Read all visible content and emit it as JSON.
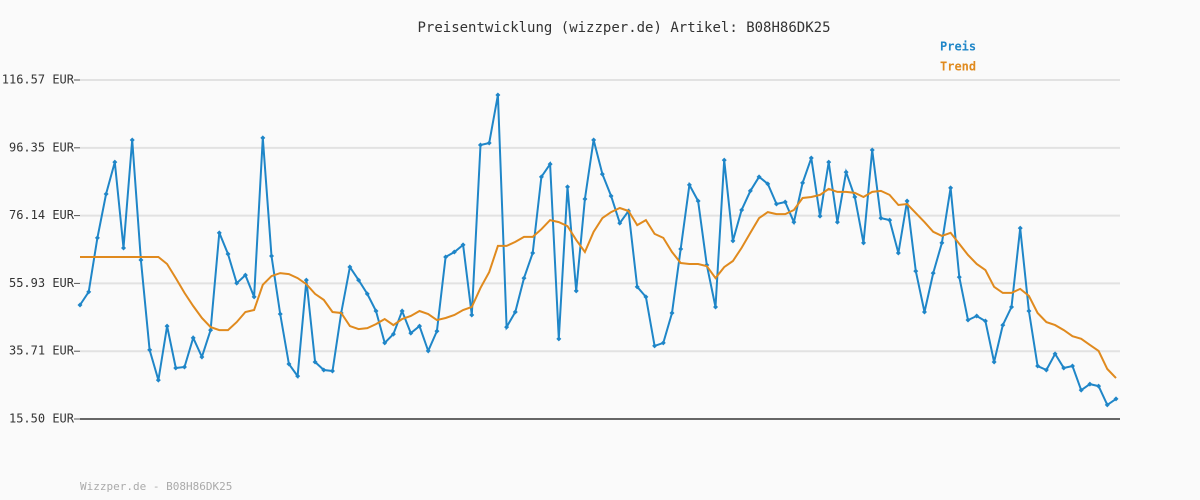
{
  "chart_data": {
    "type": "line",
    "title": "Preisentwicklung (wizzper.de) Artikel: B08H86DK25",
    "footer": "Wizzper.de - B08H86DK25",
    "legend": "top-right",
    "grid": true,
    "categories": [
      null,
      null,
      null,
      null,
      null,
      null,
      null,
      null,
      null,
      null,
      null,
      null,
      null,
      null,
      null,
      null,
      null,
      null,
      null,
      null,
      null,
      null,
      null,
      null,
      null,
      null,
      null,
      null,
      null,
      null,
      null,
      null,
      null,
      null,
      null,
      null,
      null,
      null,
      null,
      null,
      null,
      null,
      null,
      null,
      null,
      null,
      null,
      null,
      null,
      null,
      null,
      null,
      null,
      null,
      null,
      null,
      null,
      null,
      null,
      null,
      null,
      null,
      null,
      null,
      null,
      null,
      null,
      null,
      null,
      null,
      null,
      null,
      null,
      null,
      null,
      null,
      null,
      null,
      null,
      null,
      null,
      null,
      null,
      null,
      null,
      null,
      null,
      null,
      null,
      null,
      null,
      null,
      null,
      null,
      null,
      null,
      null,
      null,
      null,
      null,
      null,
      null,
      null,
      null,
      null,
      null,
      null,
      null,
      null,
      null,
      null,
      null,
      null,
      null,
      null,
      null,
      null,
      null,
      null,
      null
    ],
    "ylim": [
      15.5,
      116.57
    ],
    "yticks": [
      {
        "value": 15.5,
        "label": "15.50 EUR"
      },
      {
        "value": 35.71,
        "label": "35.71 EUR"
      },
      {
        "value": 55.93,
        "label": "55.93 EUR"
      },
      {
        "value": 76.14,
        "label": "76.14 EUR"
      },
      {
        "value": 96.35,
        "label": "96.35 EUR"
      },
      {
        "value": 116.57,
        "label": "116.57 EUR"
      }
    ],
    "series": [
      {
        "name": "Preis",
        "color": "#1f86c8",
        "markers": true,
        "values": [
          49.5,
          53.4,
          69.5,
          82.6,
          92.1,
          66.5,
          98.7,
          62.9,
          36.1,
          27.1,
          43.2,
          30.7,
          31.0,
          39.7,
          34.0,
          42.0,
          71.0,
          64.7,
          56.0,
          58.4,
          51.9,
          99.3,
          64.1,
          46.8,
          31.9,
          28.3,
          56.9,
          32.5,
          30.1,
          29.8,
          47.1,
          60.8,
          56.9,
          52.8,
          47.7,
          38.2,
          40.8,
          47.7,
          41.1,
          43.2,
          35.8,
          41.7,
          63.8,
          65.3,
          67.4,
          46.5,
          97.2,
          97.8,
          112.1,
          42.9,
          47.4,
          57.5,
          65.0,
          87.7,
          91.5,
          39.4,
          84.7,
          53.7,
          81.1,
          98.7,
          88.5,
          82.0,
          73.9,
          77.5,
          54.9,
          51.9,
          37.3,
          38.2,
          47.1,
          66.2,
          85.3,
          80.5,
          61.4,
          48.9,
          92.7,
          68.6,
          77.8,
          83.5,
          87.7,
          85.6,
          79.6,
          80.2,
          74.2,
          85.9,
          93.3,
          76.0,
          92.1,
          74.2,
          89.1,
          81.7,
          68.0,
          95.7,
          75.4,
          74.8,
          65.0,
          80.5,
          59.6,
          47.4,
          59.0,
          68.0,
          84.4,
          57.8,
          45.0,
          46.2,
          44.7,
          32.5,
          43.5,
          48.9,
          72.4,
          47.7,
          31.3,
          30.1,
          34.9,
          30.7,
          31.3,
          24.1,
          25.9,
          25.3,
          19.7,
          21.5
        ]
      },
      {
        "name": "Trend",
        "color": "#e08a1e",
        "markers": false,
        "values": [
          63.8,
          63.8,
          63.8,
          63.8,
          63.8,
          63.8,
          63.8,
          63.8,
          63.8,
          63.8,
          61.7,
          57.5,
          53.1,
          49.2,
          45.6,
          42.9,
          42.0,
          42.0,
          44.4,
          47.4,
          48.0,
          55.5,
          58.1,
          59.0,
          58.7,
          57.5,
          55.7,
          52.8,
          51.0,
          47.4,
          47.1,
          43.2,
          42.3,
          42.6,
          43.8,
          45.3,
          43.5,
          45.3,
          46.2,
          47.7,
          46.8,
          45.0,
          45.6,
          46.5,
          48.0,
          48.9,
          54.6,
          59.3,
          67.1,
          67.1,
          68.3,
          69.8,
          69.8,
          72.1,
          74.8,
          74.2,
          73.0,
          68.9,
          65.3,
          71.3,
          75.4,
          77.2,
          78.4,
          77.5,
          73.3,
          74.8,
          70.7,
          69.5,
          65.3,
          62.0,
          61.7,
          61.7,
          61.1,
          57.5,
          60.8,
          62.6,
          66.5,
          71.0,
          75.4,
          77.2,
          76.6,
          76.6,
          77.8,
          81.4,
          81.7,
          82.3,
          84.1,
          83.2,
          83.2,
          82.9,
          81.7,
          83.2,
          83.5,
          82.3,
          79.3,
          79.6,
          76.9,
          74.2,
          71.3,
          70.1,
          71.0,
          67.7,
          64.4,
          61.7,
          59.9,
          54.9,
          53.1,
          53.1,
          54.3,
          52.2,
          47.1,
          44.4,
          43.5,
          42.0,
          40.2,
          39.4,
          37.6,
          35.8,
          30.4,
          27.7
        ]
      }
    ]
  }
}
